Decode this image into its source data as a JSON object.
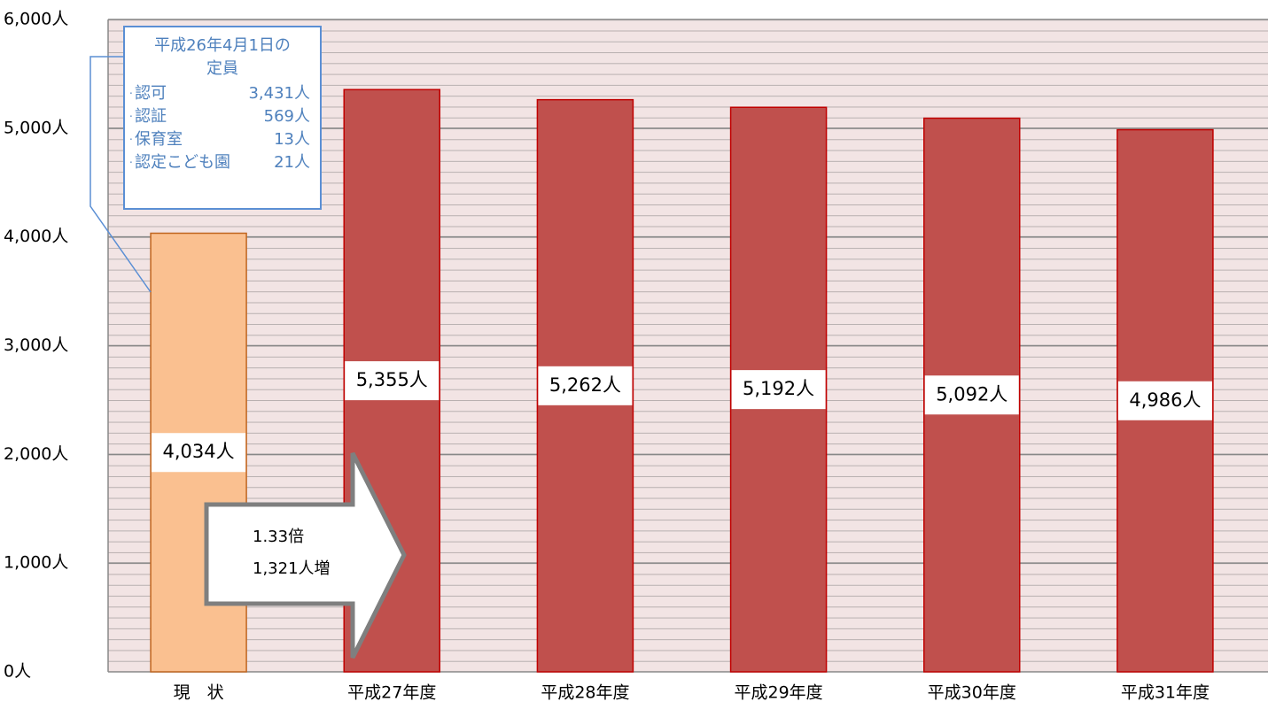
{
  "chart_data": {
    "type": "bar",
    "categories": [
      "現　状",
      "平成27年度",
      "平成28年度",
      "平成29年度",
      "平成30年度",
      "平成31年度"
    ],
    "values": [
      4034,
      5355,
      5262,
      5192,
      5092,
      4986
    ],
    "value_labels": [
      "4,034人",
      "5,355人",
      "5,262人",
      "5,192人",
      "5,092人",
      "4,986人"
    ],
    "colors": [
      "#fac090",
      "#c0504d",
      "#c0504d",
      "#c0504d",
      "#c0504d",
      "#c0504d"
    ],
    "border_colors": [
      "#c0651f",
      "#c00000",
      "#c00000",
      "#c00000",
      "#c00000",
      "#c00000"
    ],
    "ylim": [
      0,
      6000
    ],
    "yticks": [
      {
        "value": 0,
        "label": "0人"
      },
      {
        "value": 1000,
        "label": "1,000人"
      },
      {
        "value": 2000,
        "label": "2,000人"
      },
      {
        "value": 3000,
        "label": "3,000人"
      },
      {
        "value": 4000,
        "label": "4,000人"
      },
      {
        "value": 5000,
        "label": "5,000人"
      },
      {
        "value": 6000,
        "label": "6,000人"
      }
    ],
    "grid": true,
    "callout": {
      "title": [
        "平成26年4月1日の",
        "定員"
      ],
      "items": [
        {
          "label": "認可",
          "value": 3431,
          "value_label": "3,431人"
        },
        {
          "label": "認証",
          "value": 569,
          "value_label": "569人"
        },
        {
          "label": "保育室",
          "value": 13,
          "value_label": "13人"
        },
        {
          "label": "認定こども園",
          "value": 21,
          "value_label": "21人"
        }
      ]
    },
    "arrow": {
      "lines": [
        "1.33倍",
        "1,321人増"
      ]
    }
  }
}
